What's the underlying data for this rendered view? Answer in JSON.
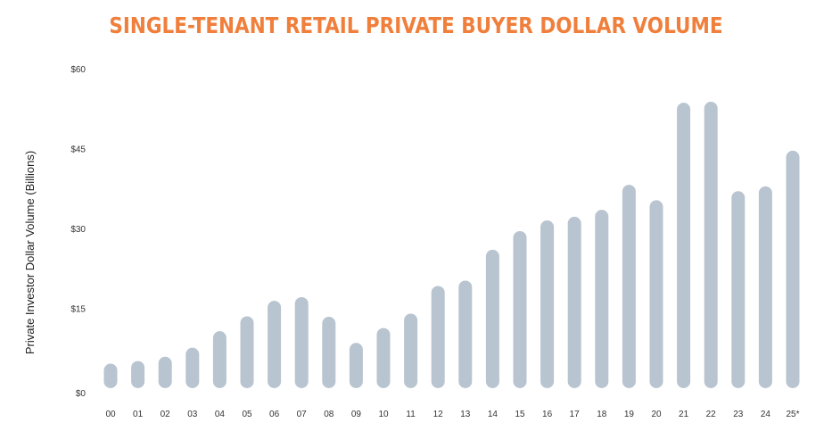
{
  "chart_data": {
    "type": "bar",
    "title": "SINGLE-TENANT RETAIL PRIVATE BUYER DOLLAR VOLUME",
    "xlabel": "",
    "ylabel": "Private Investor Dollar Volume (Billions)",
    "ylim": [
      0,
      60
    ],
    "yticks": [
      "$0",
      "$15",
      "$30",
      "$45",
      "$60"
    ],
    "ytick_values": [
      0,
      15,
      30,
      45,
      60
    ],
    "grid": false,
    "bar_color": "#b8c4cf",
    "title_color": "#f07f3c",
    "categories": [
      "00",
      "01",
      "02",
      "03",
      "04",
      "05",
      "06",
      "07",
      "08",
      "09",
      "10",
      "11",
      "12",
      "13",
      "14",
      "15",
      "16",
      "17",
      "18",
      "19",
      "20",
      "21",
      "22",
      "23",
      "24",
      "25*"
    ],
    "values": [
      4.6,
      5.1,
      5.9,
      7.6,
      10.7,
      13.5,
      16.4,
      17.1,
      13.4,
      8.5,
      11.3,
      14.0,
      19.2,
      20.2,
      26.0,
      29.5,
      31.5,
      32.2,
      33.5,
      38.2,
      35.3,
      53.6,
      53.8,
      37.0,
      37.9,
      44.6
    ]
  }
}
